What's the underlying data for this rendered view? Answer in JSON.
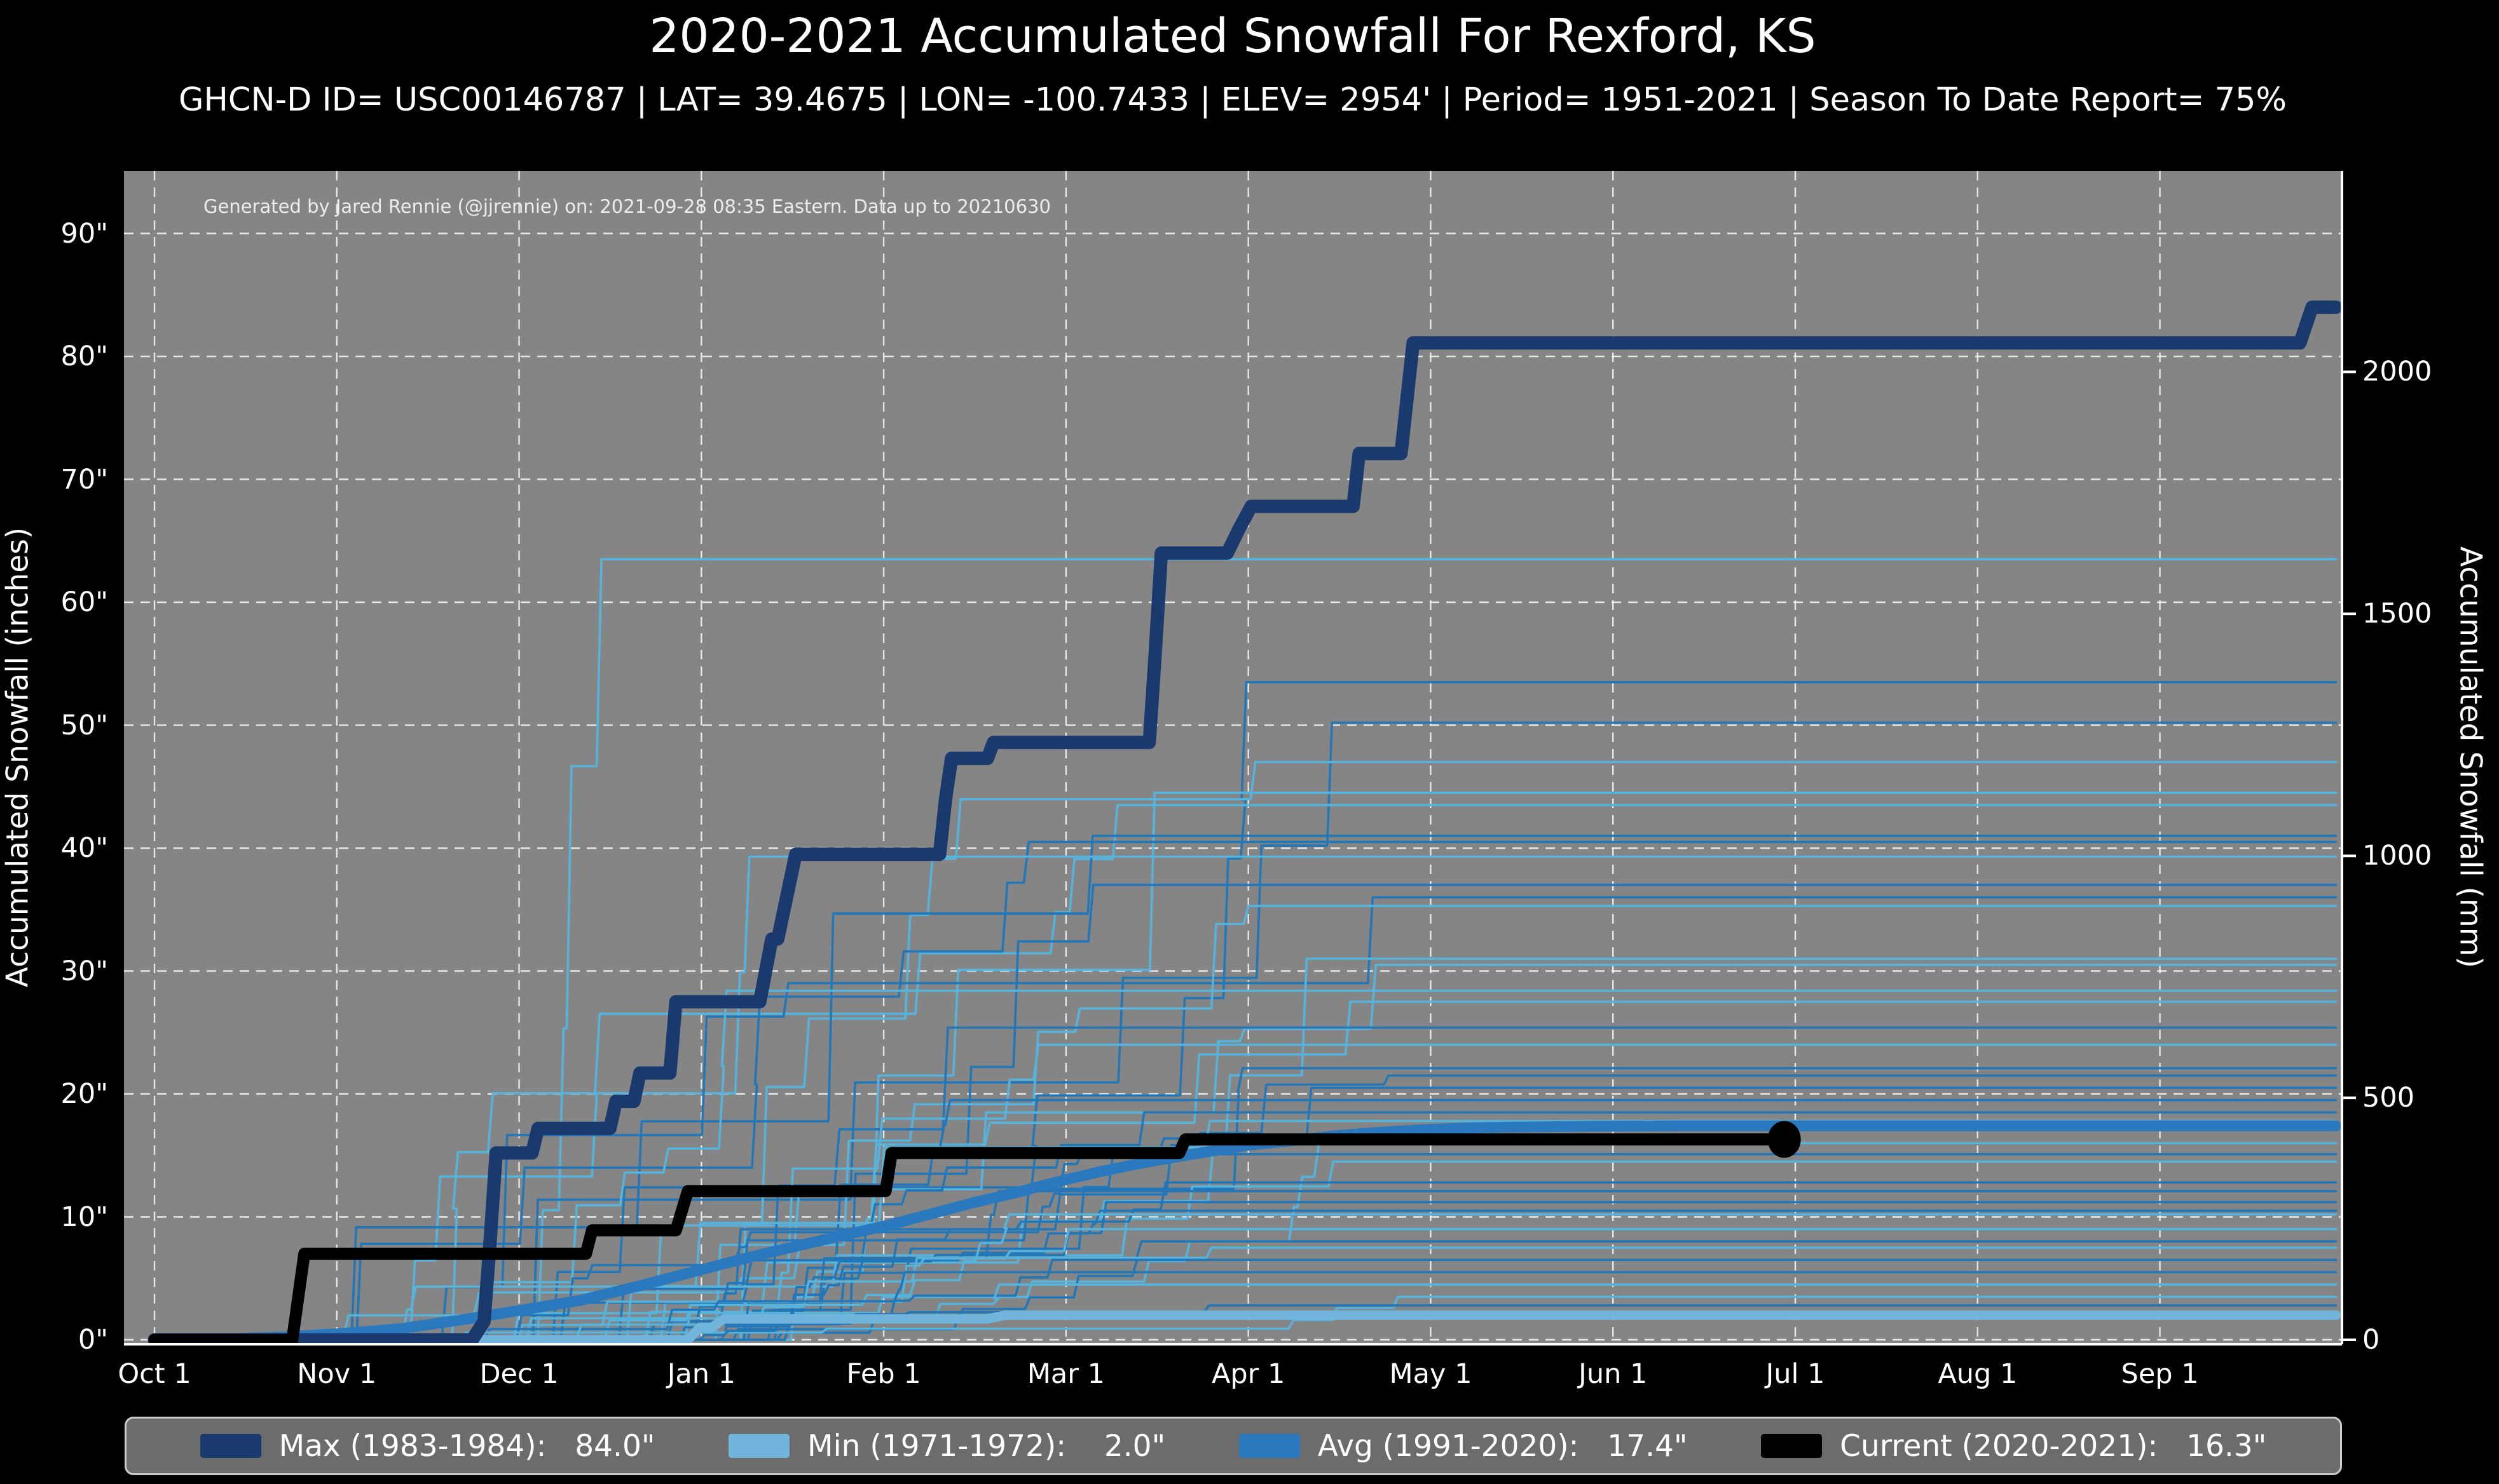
{
  "header": {
    "title": "2020-2021 Accumulated Snowfall For Rexford, KS",
    "subtitle": "GHCN-D ID= USC00146787 | LAT= 39.4675 | LON= -100.7433 | ELEV= 2954' | Period= 1951-2021 | Season To Date Report= 75%"
  },
  "plot": {
    "credit": "Generated by Jared Rennie (@jjrennie) on: 2021-09-28 08:35 Eastern. Data up to 20210630",
    "background_color": "#858585",
    "gridline_color": "#ffffff"
  },
  "axes": {
    "left_title": "Accumulated Snowfall (inches)",
    "right_title": "Accumulated Snowfall (mm)",
    "x_tick_labels": [
      "Oct 1",
      "Nov 1",
      "Dec 1",
      "Jan 1",
      "Feb 1",
      "Mar 1",
      "Apr 1",
      "May 1",
      "Jun 1",
      "Jul 1",
      "Aug 1",
      "Sep 1"
    ],
    "y_tick_labels_inches": [
      "0\"",
      "10\"",
      "20\"",
      "30\"",
      "40\"",
      "50\"",
      "60\"",
      "70\"",
      "80\"",
      "90\""
    ],
    "y_tick_values_inches": [
      0,
      10,
      20,
      30,
      40,
      50,
      60,
      70,
      80,
      90
    ],
    "y_tick_labels_mm": [
      "0",
      "500",
      "1000",
      "1500",
      "2000"
    ],
    "y_tick_values_mm": [
      0,
      500,
      1000,
      1500,
      2000
    ]
  },
  "legend": {
    "items": [
      {
        "label": "Max (1983-1984):   84.0\"",
        "color": "#1a3a6e"
      },
      {
        "label": "Min (1971-1972):    2.0\"",
        "color": "#72b5dc"
      },
      {
        "label": "Avg (1991-2020):   17.4\"",
        "color": "#2a78bd"
      },
      {
        "label": "Current (2020-2021):   16.3\"",
        "color": "#000000"
      }
    ]
  },
  "chart_data": {
    "type": "line",
    "title": "2020-2021 Accumulated Snowfall For Rexford, KS",
    "xlabel": "Season day (Oct 1 - Sep 30)",
    "ylabel_left": "Accumulated Snowfall (inches)",
    "ylabel_right": "Accumulated Snowfall (mm)",
    "x_range_days": [
      0,
      364
    ],
    "ylim_inches": [
      0,
      95
    ],
    "grid": true,
    "legend_position": "bottom",
    "series": [
      {
        "name": "Max (1983-1984)",
        "final_inches": 84.0,
        "color": "#1a3a6e",
        "width": 21,
        "style": "step",
        "points": [
          [
            0,
            0
          ],
          [
            53,
            0
          ],
          [
            55,
            1.5
          ],
          [
            56,
            8.0
          ],
          [
            57,
            15.2
          ],
          [
            63,
            15.2
          ],
          [
            64,
            17.2
          ],
          [
            76,
            17.2
          ],
          [
            77,
            19.4
          ],
          [
            80,
            19.4
          ],
          [
            81,
            21.7
          ],
          [
            86,
            21.7
          ],
          [
            87,
            27.5
          ],
          [
            101,
            27.5
          ],
          [
            103,
            32.6
          ],
          [
            104,
            32.6
          ],
          [
            106,
            37.2
          ],
          [
            107,
            39.5
          ],
          [
            131,
            39.5
          ],
          [
            132,
            44.0
          ],
          [
            133,
            47.3
          ],
          [
            139,
            47.3
          ],
          [
            140,
            48.6
          ],
          [
            166,
            48.6
          ],
          [
            167,
            56.0
          ],
          [
            168,
            64.0
          ],
          [
            179,
            64.0
          ],
          [
            181,
            66.0
          ],
          [
            183,
            67.8
          ],
          [
            200,
            67.8
          ],
          [
            201,
            72.1
          ],
          [
            208,
            72.1
          ],
          [
            210,
            81.1
          ],
          [
            358,
            81.1
          ],
          [
            360,
            84.0
          ],
          [
            364,
            84.0
          ]
        ]
      },
      {
        "name": "Min (1971-1972)",
        "final_inches": 2.0,
        "color": "#72b5dc",
        "width": 15,
        "style": "step",
        "points": [
          [
            0,
            0
          ],
          [
            89,
            0
          ],
          [
            91,
            1.0
          ],
          [
            93,
            1.0
          ],
          [
            95,
            1.7
          ],
          [
            139,
            1.7
          ],
          [
            142,
            2.0
          ],
          [
            364,
            2.0
          ]
        ]
      },
      {
        "name": "Avg (1991-2020)",
        "final_inches": 17.4,
        "color": "#2a78bd",
        "width": 17,
        "style": "smooth",
        "points": [
          [
            0,
            0
          ],
          [
            10,
            0.05
          ],
          [
            20,
            0.2
          ],
          [
            31,
            0.5
          ],
          [
            41,
            0.9
          ],
          [
            51,
            1.6
          ],
          [
            61,
            2.4
          ],
          [
            71,
            3.2
          ],
          [
            81,
            4.4
          ],
          [
            92,
            5.8
          ],
          [
            100,
            6.8
          ],
          [
            107,
            7.6
          ],
          [
            115,
            8.5
          ],
          [
            123,
            9.4
          ],
          [
            130,
            10.3
          ],
          [
            137,
            11.2
          ],
          [
            144,
            12.0
          ],
          [
            151,
            12.9
          ],
          [
            158,
            13.7
          ],
          [
            165,
            14.4
          ],
          [
            172,
            15.0
          ],
          [
            182,
            15.8
          ],
          [
            190,
            16.2
          ],
          [
            197,
            16.6
          ],
          [
            205,
            16.9
          ],
          [
            212,
            17.1
          ],
          [
            220,
            17.25
          ],
          [
            227,
            17.3
          ],
          [
            240,
            17.37
          ],
          [
            255,
            17.4
          ],
          [
            364,
            17.4
          ]
        ]
      },
      {
        "name": "Current (2020-2021)",
        "final_inches": 16.3,
        "color": "#000000",
        "width": 19,
        "style": "step",
        "end_marker_day": 273,
        "points": [
          [
            0,
            0
          ],
          [
            23,
            0
          ],
          [
            25,
            7.0
          ],
          [
            72,
            7.0
          ],
          [
            73,
            8.9
          ],
          [
            87,
            8.9
          ],
          [
            89,
            12.1
          ],
          [
            122,
            12.1
          ],
          [
            123,
            15.2
          ],
          [
            171,
            15.2
          ],
          [
            172,
            16.3
          ],
          [
            273,
            16.3
          ]
        ]
      }
    ],
    "ensemble_years": {
      "description": "thin historical season lines 1951-2021, season-end totals in inches read at right edge",
      "colors": [
        "#2277b8",
        "#56b4dc"
      ],
      "final_values": [
        63.5,
        53.5,
        50.2,
        47.0,
        44.5,
        43.5,
        41.0,
        40.5,
        39.3,
        37.0,
        36.0,
        35.3,
        31.0,
        30.5,
        28.4,
        27.5,
        25.4,
        24.0,
        22.1,
        21.5,
        20.5,
        19.5,
        18.5,
        17.8,
        16.0,
        15.1,
        14.5,
        12.8,
        12.1,
        11.2,
        10.5,
        10.2,
        9.0,
        8.0,
        7.5,
        6.5,
        5.5,
        4.5,
        3.5,
        2.8
      ]
    }
  }
}
